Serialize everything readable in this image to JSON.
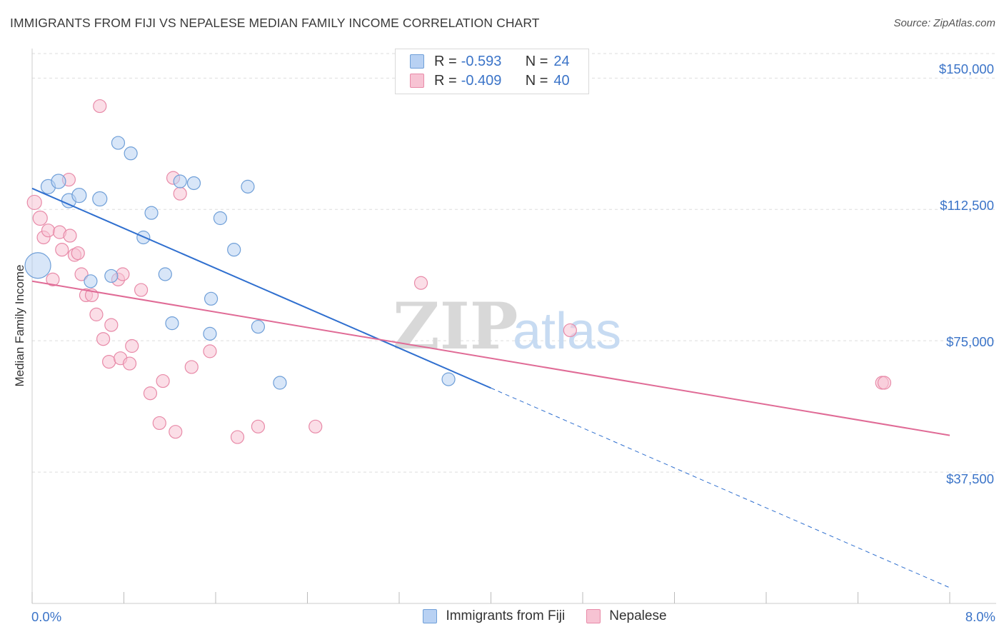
{
  "title": "IMMIGRANTS FROM FIJI VS NEPALESE MEDIAN FAMILY INCOME CORRELATION CHART",
  "source": "Source: ZipAtlas.com",
  "watermark": "ZIPatlas",
  "legend": {
    "rows": [
      {
        "r_label": "R =",
        "r_value": "-0.593",
        "n_label": "N =",
        "n_value": "24"
      },
      {
        "r_label": "R =",
        "r_value": "-0.409",
        "n_label": "N =",
        "n_value": "40"
      }
    ]
  },
  "bottom_legend": [
    "Immigrants from Fiji",
    "Nepalese"
  ],
  "colors": {
    "fiji_fill": "#b8d1f3",
    "fiji_stroke": "#6f9fd8",
    "fiji_line": "#2f6fcf",
    "nep_fill": "#f7c3d3",
    "nep_stroke": "#e88aa8",
    "nep_line": "#e06b96",
    "grid": "#dddddd",
    "axis_text": "#3b74c8"
  },
  "chart_data": {
    "type": "scatter",
    "title": "IMMIGRANTS FROM FIJI VS NEPALESE MEDIAN FAMILY INCOME CORRELATION CHART",
    "xlabel": "",
    "ylabel": "Median Family Income",
    "xlim": [
      0,
      8.0
    ],
    "ylim": [
      0,
      157000
    ],
    "x_tick_labels": [
      "0.0%",
      "8.0%"
    ],
    "y_ticks": [
      37500,
      75000,
      112500,
      150000
    ],
    "y_tick_labels": [
      "$37,500",
      "$75,000",
      "$112,500",
      "$150,000"
    ],
    "grid": true,
    "series": [
      {
        "name": "Immigrants from Fiji",
        "r": -0.593,
        "n": 24,
        "points": [
          [
            0.05,
            96500,
            18
          ],
          [
            0.14,
            119000,
            10
          ],
          [
            0.23,
            120500,
            10
          ],
          [
            0.32,
            115000,
            10
          ],
          [
            0.41,
            116500,
            10
          ],
          [
            0.51,
            92000,
            9
          ],
          [
            0.59,
            115500,
            10
          ],
          [
            0.69,
            93500,
            9
          ],
          [
            0.75,
            131500,
            9
          ],
          [
            0.86,
            128500,
            9
          ],
          [
            0.97,
            104500,
            9
          ],
          [
            1.04,
            111500,
            9
          ],
          [
            1.16,
            94000,
            9
          ],
          [
            1.22,
            80000,
            9
          ],
          [
            1.29,
            120500,
            9
          ],
          [
            1.41,
            120000,
            9
          ],
          [
            1.55,
            77000,
            9
          ],
          [
            1.56,
            87000,
            9
          ],
          [
            1.64,
            110000,
            9
          ],
          [
            1.76,
            101000,
            9
          ],
          [
            1.88,
            119000,
            9
          ],
          [
            1.97,
            79000,
            9
          ],
          [
            2.16,
            63000,
            9
          ],
          [
            3.63,
            64000,
            9
          ]
        ],
        "trend": {
          "x0": 0.0,
          "y0": 118500,
          "x1": 4.0,
          "y1": 61500,
          "dash_to_x": 8.0,
          "dash_to_y": 4500
        }
      },
      {
        "name": "Nepalese",
        "r": -0.409,
        "n": 40,
        "points": [
          [
            0.02,
            114500,
            10
          ],
          [
            0.07,
            110000,
            10
          ],
          [
            0.1,
            104500,
            9
          ],
          [
            0.14,
            106500,
            9
          ],
          [
            0.18,
            92500,
            9
          ],
          [
            0.24,
            106000,
            9
          ],
          [
            0.26,
            101000,
            9
          ],
          [
            0.32,
            121000,
            9
          ],
          [
            0.33,
            105000,
            9
          ],
          [
            0.37,
            99500,
            9
          ],
          [
            0.4,
            100000,
            9
          ],
          [
            0.43,
            94000,
            9
          ],
          [
            0.47,
            88000,
            9
          ],
          [
            0.52,
            88000,
            9
          ],
          [
            0.56,
            82500,
            9
          ],
          [
            0.59,
            142000,
            9
          ],
          [
            0.62,
            75500,
            9
          ],
          [
            0.67,
            69000,
            9
          ],
          [
            0.69,
            79500,
            9
          ],
          [
            0.75,
            92500,
            9
          ],
          [
            0.77,
            70000,
            9
          ],
          [
            0.79,
            94000,
            9
          ],
          [
            0.85,
            68500,
            9
          ],
          [
            0.87,
            73500,
            9
          ],
          [
            0.95,
            89500,
            9
          ],
          [
            1.03,
            60000,
            9
          ],
          [
            1.11,
            51500,
            9
          ],
          [
            1.14,
            63500,
            9
          ],
          [
            1.23,
            121500,
            9
          ],
          [
            1.25,
            49000,
            9
          ],
          [
            1.29,
            117000,
            9
          ],
          [
            1.39,
            67500,
            9
          ],
          [
            1.55,
            72000,
            9
          ],
          [
            1.79,
            47500,
            9
          ],
          [
            1.97,
            50500,
            9
          ],
          [
            2.47,
            50500,
            9
          ],
          [
            3.39,
            91500,
            9
          ],
          [
            4.69,
            78000,
            9
          ],
          [
            7.41,
            63000,
            9
          ],
          [
            7.43,
            63000,
            9
          ]
        ],
        "trend": {
          "x0": 0.0,
          "y0": 92000,
          "x1": 8.0,
          "y1": 48000
        }
      }
    ]
  }
}
